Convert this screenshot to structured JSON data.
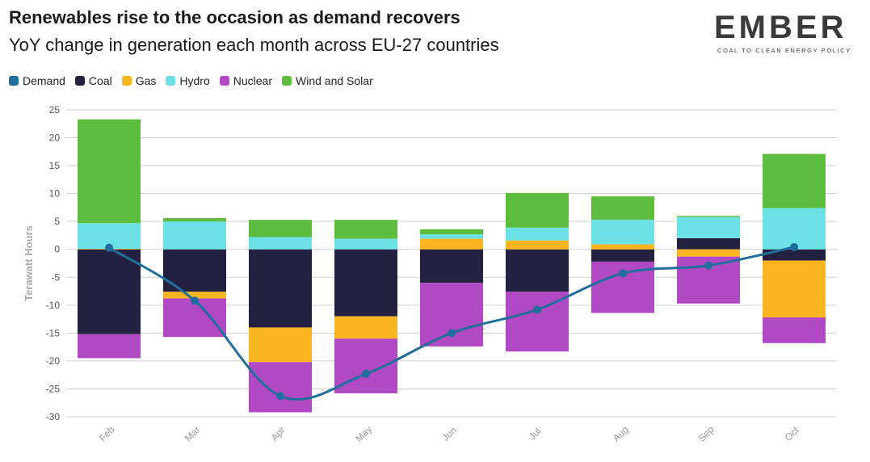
{
  "header": {
    "title": "Renewables rise to the occasion as demand recovers",
    "subtitle": "YoY change in generation each month across EU-27 countries"
  },
  "logo": {
    "word": "EMBER",
    "tagline": "COAL TO CLEAN ENERGY POLICY"
  },
  "chart_data": {
    "type": "bar",
    "stacked": true,
    "categories": [
      "Feb",
      "Mar",
      "Apr",
      "May",
      "Jun",
      "Jul",
      "Aug",
      "Sep",
      "Oct"
    ],
    "ylabel": "Terawatt Hours",
    "ylim": [
      -30,
      25
    ],
    "yticks": [
      25,
      20,
      15,
      10,
      5,
      0,
      -5,
      -10,
      -15,
      -20,
      -25,
      -30
    ],
    "grid": true,
    "legend_position": "top-left",
    "series": [
      {
        "name": "Coal",
        "color": "#23213f",
        "values": [
          -15.2,
          -7.6,
          -14,
          -12,
          -6,
          -7.6,
          -2.2,
          2,
          -2
        ]
      },
      {
        "name": "Gas",
        "color": "#fbb520",
        "values": [
          0.1,
          -1.2,
          -6.2,
          -4,
          1.9,
          1.6,
          0.9,
          -1.3,
          -10.2
        ]
      },
      {
        "name": "Hydro",
        "color": "#6de2e6",
        "values": [
          4.6,
          5,
          2.2,
          1.9,
          0.8,
          2.3,
          4.4,
          3.8,
          7.4
        ]
      },
      {
        "name": "Nuclear",
        "color": "#b148c4",
        "values": [
          -4.3,
          -6.9,
          -9,
          -9.8,
          -11.4,
          -10.7,
          -9.2,
          -8.4,
          -4.6
        ]
      },
      {
        "name": "Wind and Solar",
        "color": "#5ebd3e",
        "values": [
          18.6,
          0.6,
          3.1,
          3.4,
          0.9,
          6.2,
          4.2,
          0.2,
          9.7
        ]
      },
      {
        "name": "Demand",
        "color": "#1f6e9c",
        "type": "line",
        "values": [
          0.3,
          -9.2,
          -26.3,
          -22.3,
          -15,
          -10.8,
          -4.3,
          -2.9,
          0.4
        ]
      }
    ]
  }
}
